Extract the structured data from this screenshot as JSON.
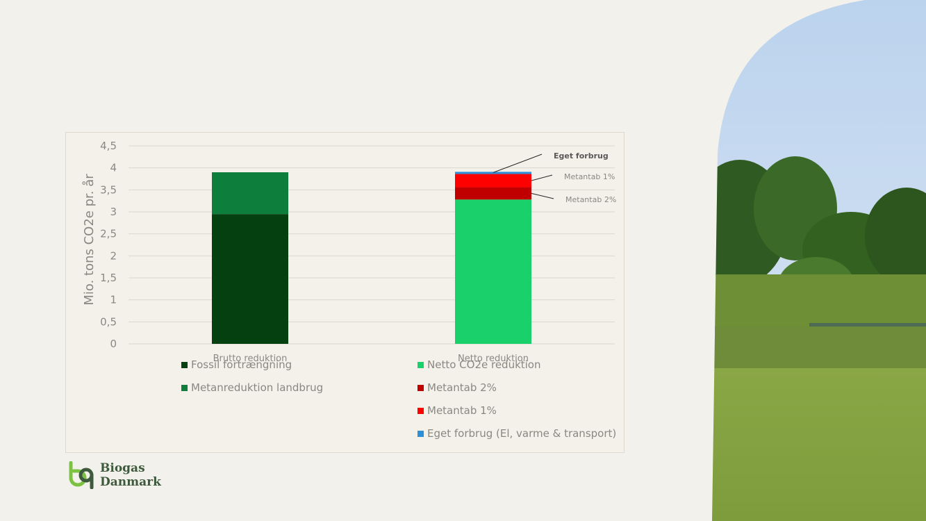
{
  "chart_data": {
    "type": "bar",
    "stacked": true,
    "categories": [
      "Brutto reduktion",
      "Netto reduktion"
    ],
    "series": [
      {
        "name": "Fossil fortrængning",
        "color": "#054011",
        "values": [
          2.95,
          0
        ]
      },
      {
        "name": "Metanreduktion landbrug",
        "color": "#0e7e3d",
        "values": [
          0.95,
          0
        ]
      },
      {
        "name": "Netto CO2e reduktion",
        "color": "#19d06a",
        "values": [
          0,
          3.28
        ]
      },
      {
        "name": "Metantab 2%",
        "color": "#c00000",
        "values": [
          0,
          0.28
        ]
      },
      {
        "name": "Metantab 1%",
        "color": "#ff0000",
        "values": [
          0,
          0.3
        ]
      },
      {
        "name": "Eget forbrug (El, varme & transport)",
        "color": "#2e8fd6",
        "values": [
          0,
          0.05
        ]
      }
    ],
    "ylabel": "Mio. tons CO2e pr. år",
    "ylim": [
      0,
      4.5
    ],
    "yticks": [
      "0",
      "0,5",
      "1",
      "1,5",
      "2",
      "2,5",
      "3",
      "3,5",
      "4",
      "4,5"
    ],
    "grid": true,
    "legend_position": "bottom",
    "annotations": [
      "Eget forbrug",
      "Metantab 1%",
      "Metantab 2%"
    ]
  },
  "logo": {
    "line1": "Biogas",
    "line2": "Danmark"
  }
}
